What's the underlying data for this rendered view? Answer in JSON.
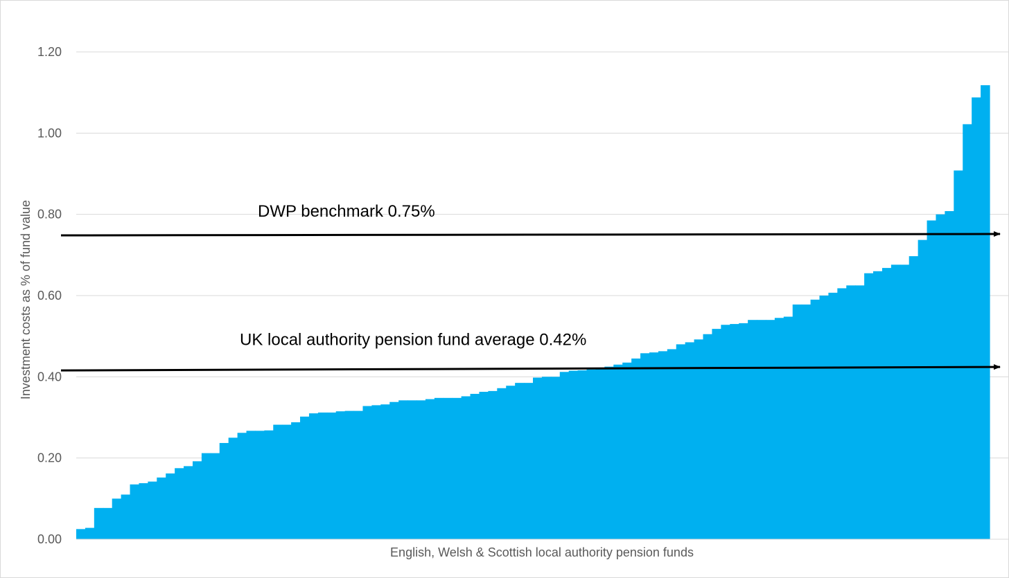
{
  "chart_data": {
    "type": "bar",
    "title": "",
    "xlabel": "English, Welsh & Scottish local authority pension funds",
    "ylabel": "Investment costs as % of fund value",
    "ylim": [
      0,
      1.2
    ],
    "yticks": [
      "0.00",
      "0.20",
      "0.40",
      "0.60",
      "0.80",
      "1.00",
      "1.20"
    ],
    "grid": true,
    "legend": "none",
    "bar_color": "#00b0f0",
    "series": [
      {
        "values": [
          0.025,
          0.028,
          0.077,
          0.077,
          0.1,
          0.11,
          0.135,
          0.138,
          0.142,
          0.152,
          0.162,
          0.175,
          0.18,
          0.192,
          0.212,
          0.212,
          0.237,
          0.25,
          0.262,
          0.267,
          0.267,
          0.268,
          0.282,
          0.282,
          0.288,
          0.302,
          0.31,
          0.312,
          0.312,
          0.315,
          0.316,
          0.316,
          0.328,
          0.33,
          0.332,
          0.338,
          0.342,
          0.342,
          0.342,
          0.345,
          0.348,
          0.348,
          0.348,
          0.352,
          0.358,
          0.363,
          0.365,
          0.372,
          0.378,
          0.385,
          0.385,
          0.398,
          0.4,
          0.4,
          0.412,
          0.415,
          0.416,
          0.418,
          0.42,
          0.425,
          0.43,
          0.435,
          0.445,
          0.458,
          0.46,
          0.463,
          0.468,
          0.48,
          0.485,
          0.492,
          0.505,
          0.518,
          0.528,
          0.53,
          0.532,
          0.54,
          0.54,
          0.54,
          0.545,
          0.548,
          0.578,
          0.578,
          0.59,
          0.6,
          0.607,
          0.618,
          0.625,
          0.625,
          0.655,
          0.66,
          0.668,
          0.676,
          0.676,
          0.697,
          0.737,
          0.785,
          0.8,
          0.808,
          0.908,
          1.022,
          1.088,
          1.118
        ]
      }
    ],
    "annotations": [
      {
        "label": "DWP benchmark 0.75%",
        "value": 0.75
      },
      {
        "label": "UK local authority pension fund average 0.42%",
        "value": 0.42
      }
    ]
  }
}
